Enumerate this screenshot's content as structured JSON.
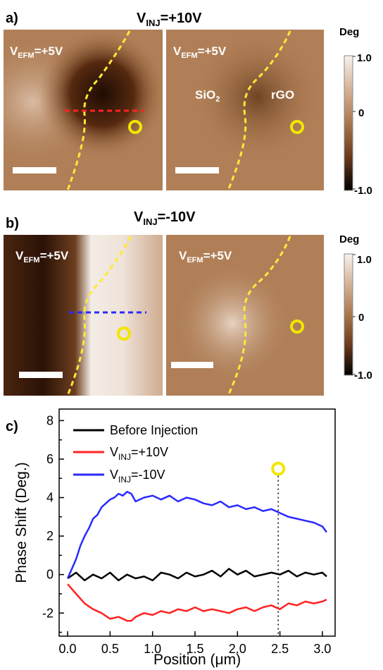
{
  "panel_a": {
    "label": "a)",
    "title": {
      "base": "V",
      "sub": "INJ",
      "tail": "=+10V"
    },
    "images": [
      {
        "vefm": {
          "base": "V",
          "sub": "EFM",
          "tail": "=+5V"
        }
      },
      {
        "vefm": {
          "base": "V",
          "sub": "EFM",
          "tail": "=+5V"
        },
        "region_left": {
          "base": "SiO",
          "sub": "2"
        },
        "region_right": "rGO"
      }
    ],
    "colorbar": {
      "title": "Deg",
      "ticks": [
        "1.0",
        "0",
        "-1.0"
      ]
    }
  },
  "panel_b": {
    "label": "b)",
    "title": {
      "base": "V",
      "sub": "INJ",
      "tail": "=-10V"
    },
    "images": [
      {
        "vefm": {
          "base": "V",
          "sub": "EFM",
          "tail": "=+5V"
        }
      },
      {
        "vefm": {
          "base": "V",
          "sub": "EFM",
          "tail": "=+5V"
        }
      }
    ],
    "colorbar": {
      "title": "Deg",
      "ticks": [
        "1.0",
        "0",
        "-1.0"
      ]
    }
  },
  "panel_c": {
    "label": "c)"
  },
  "colors": {
    "image_base": "#a9774d",
    "dark": "#3a1c0c",
    "light": "#f4ebe3",
    "marker": "#f2e600",
    "boundary": "#ffe93a",
    "red_line": "#ff2222",
    "blue_line": "#2a2aff"
  },
  "chart_data": {
    "type": "line",
    "xlabel": "Position (μm)",
    "ylabel": "Phase Shift (Deg.)",
    "xlim": [
      -0.1,
      3.15
    ],
    "ylim": [
      -3.2,
      8.6
    ],
    "xticks": [
      "0.0",
      "0.5",
      "1.0",
      "1.5",
      "2.0",
      "2.5",
      "3.0"
    ],
    "yticks": [
      "-2",
      "0",
      "2",
      "4",
      "6",
      "8"
    ],
    "legend_position": "top-left",
    "marker_x": 2.48,
    "marker_y": 5.5,
    "series": [
      {
        "name": "Before Injection",
        "color": "#000000",
        "x": [
          0.0,
          0.1,
          0.2,
          0.3,
          0.4,
          0.5,
          0.6,
          0.7,
          0.8,
          0.9,
          1.0,
          1.1,
          1.2,
          1.3,
          1.4,
          1.5,
          1.6,
          1.7,
          1.8,
          1.9,
          2.0,
          2.1,
          2.2,
          2.3,
          2.4,
          2.5,
          2.6,
          2.7,
          2.8,
          2.9,
          3.0,
          3.05
        ],
        "values": [
          -0.2,
          0.1,
          -0.3,
          0.0,
          -0.2,
          0.1,
          -0.3,
          0.0,
          -0.2,
          -0.1,
          -0.3,
          0.1,
          0.0,
          -0.2,
          0.1,
          -0.1,
          0.0,
          0.2,
          -0.1,
          0.3,
          0.0,
          0.2,
          -0.1,
          0.0,
          0.1,
          0.0,
          0.2,
          -0.1,
          0.1,
          0.0,
          0.1,
          -0.1
        ]
      },
      {
        "name": "V_INJ=+10V",
        "color": "#ff2222",
        "x": [
          0.0,
          0.1,
          0.2,
          0.3,
          0.4,
          0.5,
          0.6,
          0.7,
          0.75,
          0.8,
          0.9,
          1.0,
          1.1,
          1.2,
          1.3,
          1.4,
          1.5,
          1.6,
          1.7,
          1.8,
          1.9,
          2.0,
          2.1,
          2.2,
          2.3,
          2.4,
          2.5,
          2.6,
          2.7,
          2.8,
          2.9,
          3.0,
          3.05
        ],
        "values": [
          -0.5,
          -1.0,
          -1.5,
          -1.8,
          -2.0,
          -2.3,
          -2.2,
          -2.4,
          -2.4,
          -2.2,
          -2.0,
          -2.1,
          -1.9,
          -2.0,
          -1.8,
          -1.9,
          -1.7,
          -1.9,
          -1.8,
          -1.9,
          -2.0,
          -1.8,
          -1.7,
          -1.9,
          -1.7,
          -1.6,
          -1.8,
          -1.5,
          -1.6,
          -1.4,
          -1.5,
          -1.4,
          -1.3
        ]
      },
      {
        "name": "V_INJ=-10V",
        "color": "#2a2aff",
        "x": [
          0.0,
          0.05,
          0.1,
          0.15,
          0.2,
          0.25,
          0.3,
          0.35,
          0.4,
          0.45,
          0.5,
          0.55,
          0.6,
          0.65,
          0.7,
          0.75,
          0.8,
          0.9,
          1.0,
          1.1,
          1.2,
          1.3,
          1.4,
          1.5,
          1.6,
          1.7,
          1.8,
          1.9,
          2.0,
          2.1,
          2.2,
          2.3,
          2.4,
          2.5,
          2.6,
          2.7,
          2.8,
          2.9,
          3.0,
          3.05
        ],
        "values": [
          -0.2,
          0.3,
          0.8,
          1.5,
          2.0,
          2.4,
          2.9,
          3.1,
          3.5,
          3.7,
          3.9,
          4.0,
          4.2,
          4.1,
          4.3,
          4.2,
          3.8,
          4.0,
          4.1,
          3.9,
          4.1,
          3.8,
          4.0,
          3.9,
          3.7,
          3.6,
          3.8,
          3.5,
          3.6,
          3.4,
          3.5,
          3.3,
          3.4,
          3.2,
          3.0,
          2.9,
          2.8,
          2.7,
          2.5,
          2.2
        ]
      }
    ]
  }
}
